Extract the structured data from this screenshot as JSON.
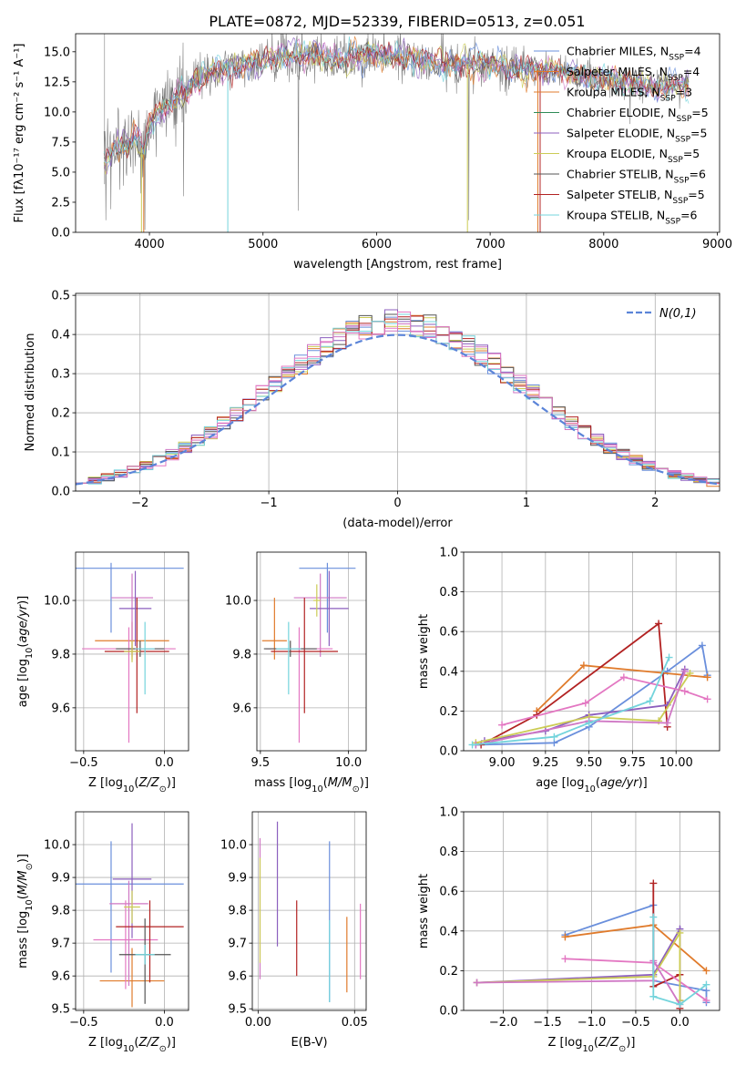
{
  "figure": {
    "title": "PLATE=0872, MJD=52339, FIBERID=0513, z=0.051"
  },
  "colors": {
    "series": [
      "#6a8fdc",
      "#e07b2c",
      "#8c5fbe",
      "#cf77c4",
      "#cccc55",
      "#555555",
      "#b22222",
      "#74d4dc",
      "#2e8b57",
      "#e377c2"
    ],
    "spectrum_data": "#808080",
    "normal_curve": "#5b84d8",
    "grid": "#b0b0b0"
  },
  "chart_data": [
    {
      "id": "spectrum",
      "type": "line",
      "xlabel": "wavelength [Angstrom, rest frame]",
      "ylabel": "Flux [f$_\\lambda$10$^{-17}$ erg cm$^{-2}$ s$^{-1}$ A$^{-1}$]",
      "ylabel_display": "Flux [fλ10⁻¹⁷ erg cm⁻² s⁻¹ A⁻¹]",
      "xlim": [
        3350,
        9020
      ],
      "ylim": [
        0,
        16.5
      ],
      "xticks": [
        4000,
        5000,
        6000,
        7000,
        8000,
        9000
      ],
      "yticks": [
        0.0,
        2.5,
        5.0,
        7.5,
        10.0,
        12.5,
        15.0
      ],
      "legend_position": "upper right",
      "grid": false,
      "continuum": {
        "x": [
          3600,
          3700,
          3800,
          3900,
          3950,
          4000,
          4100,
          4200,
          4300,
          4400,
          4500,
          4600,
          4800,
          5000,
          5200,
          5400,
          5600,
          5800,
          6000,
          6200,
          6400,
          6600,
          6800,
          7000,
          7200,
          7400,
          7600,
          7800,
          8000,
          8200,
          8400,
          8600,
          8750
        ],
        "y": [
          6.0,
          6.8,
          7.4,
          7.8,
          6.5,
          9.0,
          10.3,
          10.9,
          11.6,
          12.4,
          13.1,
          13.5,
          14.0,
          14.3,
          14.6,
          14.7,
          14.5,
          14.6,
          14.8,
          14.5,
          14.2,
          13.9,
          14.0,
          13.9,
          13.6,
          13.5,
          13.3,
          13.0,
          12.6,
          12.4,
          12.2,
          12.2,
          12.1
        ]
      },
      "series": [
        {
          "name": "Chabrier MILES, N$_{SSP}$=4",
          "label": "Chabrier MILES, N",
          "sub": "SSP",
          "suffix": "=4"
        },
        {
          "name": "Salpeter MILES, N$_{SSP}$=4",
          "label": "Salpeter MILES, N",
          "sub": "SSP",
          "suffix": "=4"
        },
        {
          "name": "Kroupa MILES, N$_{SSP}$=3",
          "label": "Kroupa MILES, N",
          "sub": "SSP",
          "suffix": "=3"
        },
        {
          "name": "Chabrier ELODIE, N$_{SSP}$=5",
          "label": "Chabrier ELODIE, N",
          "sub": "SSP",
          "suffix": "=5"
        },
        {
          "name": "Salpeter ELODIE, N$_{SSP}$=5",
          "label": "Salpeter ELODIE, N",
          "sub": "SSP",
          "suffix": "=5"
        },
        {
          "name": "Kroupa ELODIE, N$_{SSP}$=5",
          "label": "Kroupa ELODIE, N",
          "sub": "SSP",
          "suffix": "=5"
        },
        {
          "name": "Chabrier STELIB, N$_{SSP}$=6",
          "label": "Chabrier STELIB, N",
          "sub": "SSP",
          "suffix": "=6"
        },
        {
          "name": "Salpeter STELIB, N$_{SSP}$=5",
          "label": "Salpeter STELIB, N",
          "sub": "SSP",
          "suffix": "=5"
        },
        {
          "name": "Kroupa STELIB, N$_{SSP}$=6",
          "label": "Kroupa STELIB, N",
          "sub": "SSP",
          "suffix": "=6"
        }
      ]
    },
    {
      "id": "residuals",
      "type": "histogram",
      "xlabel": "(data-model)/error",
      "ylabel": "Normed distribution",
      "xlim": [
        -2.5,
        2.5
      ],
      "ylim": [
        0,
        0.505
      ],
      "xticks": [
        -2,
        -1,
        0,
        1,
        2
      ],
      "yticks": [
        0.0,
        0.1,
        0.2,
        0.3,
        0.4,
        0.5
      ],
      "grid": true,
      "bin_width": 0.1,
      "legend_position": "upper right",
      "normal_label": "N(0,1)",
      "normal": {
        "mean": 0,
        "sigma": 1
      }
    },
    {
      "id": "age_vs_Z",
      "type": "errorbar",
      "xlabel": "Z [log$_{10}$(Z/Z$_\\odot$)]",
      "ylabel": "age  [log$_{10}$(age/yr)]",
      "xlim": [
        -0.55,
        0.15
      ],
      "ylim": [
        9.44,
        10.18
      ],
      "xticks": [
        -0.5,
        0.0
      ],
      "yticks": [
        9.6,
        9.8,
        10.0
      ],
      "grid": true,
      "points": [
        {
          "x": -0.33,
          "y": 10.12,
          "xerr": [
            0.45,
            0.45
          ],
          "yerr": [
            0.24,
            0.02
          ],
          "c": 0
        },
        {
          "x": -0.2,
          "y": 9.85,
          "xerr": [
            0.23,
            0.23
          ],
          "yerr": [
            0.07,
            0.07
          ],
          "c": 1
        },
        {
          "x": -0.2,
          "y": 10.01,
          "xerr": [
            0.13,
            0.13
          ],
          "yerr": [
            0.22,
            0.09
          ],
          "c": 3
        },
        {
          "x": -0.18,
          "y": 9.97,
          "xerr": [
            0.1,
            0.1
          ],
          "yerr": [
            0.14,
            0.14
          ],
          "c": 2
        },
        {
          "x": -0.22,
          "y": 9.82,
          "xerr": [
            0.29,
            0.29
          ],
          "yerr": [
            0.35,
            0.08
          ],
          "c": 9
        },
        {
          "x": -0.17,
          "y": 9.81,
          "xerr": [
            0.2,
            0.2
          ],
          "yerr": [
            0.23,
            0.2
          ],
          "c": 6
        },
        {
          "x": -0.15,
          "y": 9.82,
          "xerr": [
            0.15,
            0.15
          ],
          "yerr": [
            0.03,
            0.03
          ],
          "c": 5
        },
        {
          "x": -0.12,
          "y": 9.82,
          "xerr": [
            0.06,
            0.06
          ],
          "yerr": [
            0.17,
            0.1
          ],
          "c": 7
        },
        {
          "x": -0.2,
          "y": 9.81,
          "xerr": [
            0.05,
            0.05
          ],
          "yerr": [
            0.04,
            0.04
          ],
          "c": 4
        }
      ]
    },
    {
      "id": "age_vs_mass",
      "type": "errorbar",
      "xlabel": "mass [log$_{10}$(M/M$_\\odot$)]",
      "ylabel": "",
      "xlim": [
        9.48,
        10.1
      ],
      "ylim": [
        9.44,
        10.18
      ],
      "xticks": [
        9.5,
        10.0
      ],
      "yticks": [
        9.6,
        9.8,
        10.0
      ],
      "grid": true,
      "points": [
        {
          "x": 9.88,
          "y": 10.12,
          "xerr": [
            0.16,
            0.16
          ],
          "yerr": [
            0.24,
            0.02
          ],
          "c": 0
        },
        {
          "x": 9.58,
          "y": 9.85,
          "xerr": [
            0.07,
            0.07
          ],
          "yerr": [
            0.07,
            0.16
          ],
          "c": 1
        },
        {
          "x": 9.84,
          "y": 10.01,
          "xerr": [
            0.15,
            0.15
          ],
          "yerr": [
            0.22,
            0.09
          ],
          "c": 3
        },
        {
          "x": 9.89,
          "y": 9.97,
          "xerr": [
            0.11,
            0.11
          ],
          "yerr": [
            0.14,
            0.14
          ],
          "c": 2
        },
        {
          "x": 9.72,
          "y": 9.82,
          "xerr": [
            0.19,
            0.19
          ],
          "yerr": [
            0.35,
            0.08
          ],
          "c": 9
        },
        {
          "x": 9.75,
          "y": 9.81,
          "xerr": [
            0.19,
            0.19
          ],
          "yerr": [
            0.23,
            0.2
          ],
          "c": 6
        },
        {
          "x": 9.67,
          "y": 9.82,
          "xerr": [
            0.15,
            0.15
          ],
          "yerr": [
            0.03,
            0.03
          ],
          "c": 5
        },
        {
          "x": 9.66,
          "y": 9.82,
          "xerr": [
            0.07,
            0.07
          ],
          "yerr": [
            0.17,
            0.1
          ],
          "c": 7
        },
        {
          "x": 9.82,
          "y": 10.0,
          "xerr": [
            0.02,
            0.02
          ],
          "yerr": [
            0.06,
            0.06
          ],
          "c": 4
        }
      ]
    },
    {
      "id": "weight_vs_age",
      "type": "line",
      "xlabel": "age  [log$_{10}$(age/yr)]",
      "ylabel": "mass weight",
      "xlim": [
        8.78,
        10.25
      ],
      "ylim": [
        0,
        1.0
      ],
      "xticks": [
        9.0,
        9.25,
        9.5,
        9.75,
        10.0
      ],
      "yticks": [
        0.0,
        0.2,
        0.4,
        0.6,
        0.8,
        1.0
      ],
      "grid": true,
      "series": [
        {
          "c": 0,
          "x": [
            8.85,
            9.3,
            9.5,
            9.95,
            10.15,
            10.18
          ],
          "y": [
            0.03,
            0.04,
            0.12,
            0.4,
            0.53,
            0.38
          ]
        },
        {
          "c": 1,
          "x": [
            9.2,
            9.47,
            10.18
          ],
          "y": [
            0.2,
            0.43,
            0.37
          ]
        },
        {
          "c": 6,
          "x": [
            8.88,
            9.2,
            9.9,
            9.95
          ],
          "y": [
            0.03,
            0.18,
            0.64,
            0.12
          ]
        },
        {
          "c": 2,
          "x": [
            8.9,
            9.25,
            9.5,
            9.95,
            10.05
          ],
          "y": [
            0.05,
            0.1,
            0.18,
            0.23,
            0.41
          ]
        },
        {
          "c": 9,
          "x": [
            9.0,
            9.48,
            9.7,
            10.05,
            10.18
          ],
          "y": [
            0.13,
            0.24,
            0.37,
            0.3,
            0.26
          ]
        },
        {
          "c": 4,
          "x": [
            8.85,
            9.5,
            9.9,
            10.08
          ],
          "y": [
            0.04,
            0.17,
            0.15,
            0.39
          ]
        },
        {
          "c": 3,
          "x": [
            8.85,
            9.5,
            9.95,
            10.05
          ],
          "y": [
            0.03,
            0.15,
            0.14,
            0.4
          ]
        },
        {
          "c": 7,
          "x": [
            8.83,
            9.3,
            9.5,
            9.85,
            9.96
          ],
          "y": [
            0.03,
            0.07,
            0.14,
            0.25,
            0.47
          ]
        }
      ]
    },
    {
      "id": "mass_vs_Z",
      "type": "errorbar",
      "xlabel": "Z [log$_{10}$(Z/Z$_\\odot$)]",
      "ylabel": "mass [log$_{10}$(M/M$_\\odot$)]",
      "xlim": [
        -0.55,
        0.15
      ],
      "ylim": [
        9.495,
        10.1
      ],
      "xticks": [
        -0.5,
        0.0
      ],
      "yticks": [
        9.5,
        9.6,
        9.7,
        9.8,
        9.9,
        10.0
      ],
      "grid": true,
      "points": [
        {
          "x": -0.33,
          "y": 9.88,
          "xerr": [
            0.45,
            0.45
          ],
          "yerr": [
            0.27,
            0.13
          ],
          "c": 0
        },
        {
          "x": -0.2,
          "y": 9.585,
          "xerr": [
            0.2,
            0.2
          ],
          "yerr": [
            0.08,
            0.1
          ],
          "c": 1
        },
        {
          "x": -0.2,
          "y": 9.895,
          "xerr": [
            0.12,
            0.12
          ],
          "yerr": [
            0.18,
            0.17
          ],
          "c": 2
        },
        {
          "x": -0.22,
          "y": 9.82,
          "xerr": [
            0.12,
            0.12
          ],
          "yerr": [
            0.25,
            0.07
          ],
          "c": 3
        },
        {
          "x": -0.24,
          "y": 9.71,
          "xerr": [
            0.2,
            0.2
          ],
          "yerr": [
            0.15,
            0.12
          ],
          "c": 9
        },
        {
          "x": -0.2,
          "y": 9.81,
          "xerr": [
            0.05,
            0.05
          ],
          "yerr": [
            0.05,
            0.05
          ],
          "c": 4
        },
        {
          "x": -0.09,
          "y": 9.75,
          "xerr": [
            0.21,
            0.21
          ],
          "yerr": [
            0.17,
            0.08
          ],
          "c": 6
        },
        {
          "x": -0.12,
          "y": 9.665,
          "xerr": [
            0.16,
            0.16
          ],
          "yerr": [
            0.15,
            0.11
          ],
          "c": 5
        },
        {
          "x": -0.12,
          "y": 9.665,
          "xerr": [
            0.06,
            0.06
          ],
          "yerr": [
            0.03,
            0.03
          ],
          "c": 7
        }
      ]
    },
    {
      "id": "mass_vs_ebv",
      "type": "errorbar",
      "xlabel": "E(B-V)",
      "ylabel": "",
      "xlim": [
        -0.003,
        0.056
      ],
      "ylim": [
        9.495,
        10.1
      ],
      "xticks": [
        0.0,
        0.05
      ],
      "yticks": [
        9.5,
        9.6,
        9.7,
        9.8,
        9.9,
        10.0
      ],
      "grid": true,
      "points": [
        {
          "x": 0.001,
          "y": 9.82,
          "xerr": [
            0,
            0
          ],
          "yerr": [
            0.23,
            0.2
          ],
          "c": 3
        },
        {
          "x": 0.001,
          "y": 9.76,
          "xerr": [
            0,
            0
          ],
          "yerr": [
            0.12,
            0.2
          ],
          "c": 4
        },
        {
          "x": 0.01,
          "y": 9.88,
          "xerr": [
            0,
            0
          ],
          "yerr": [
            0.19,
            0.19
          ],
          "c": 2
        },
        {
          "x": 0.02,
          "y": 9.75,
          "xerr": [
            0,
            0
          ],
          "yerr": [
            0.15,
            0.08
          ],
          "c": 6
        },
        {
          "x": 0.037,
          "y": 9.8,
          "xerr": [
            0,
            0
          ],
          "yerr": [
            0.28,
            0.21
          ],
          "c": 0
        },
        {
          "x": 0.037,
          "y": 9.67,
          "xerr": [
            0,
            0
          ],
          "yerr": [
            0.15,
            0.1
          ],
          "c": 7
        },
        {
          "x": 0.046,
          "y": 9.68,
          "xerr": [
            0,
            0
          ],
          "yerr": [
            0.13,
            0.1
          ],
          "c": 1
        },
        {
          "x": 0.053,
          "y": 9.71,
          "xerr": [
            0,
            0
          ],
          "yerr": [
            0.12,
            0.11
          ],
          "c": 9
        }
      ]
    },
    {
      "id": "weight_vs_Z",
      "type": "line",
      "xlabel": "Z [log$_{10}$(Z/Z$_\\odot$)]",
      "ylabel": "mass weight",
      "xlim": [
        -2.45,
        0.45
      ],
      "ylim": [
        0,
        1.0
      ],
      "xticks": [
        -2.0,
        -1.5,
        -1.0,
        -0.5,
        0.0
      ],
      "yticks": [
        0.0,
        0.2,
        0.4,
        0.6,
        0.8,
        1.0
      ],
      "grid": true,
      "series": [
        {
          "c": 0,
          "x": [
            -1.3,
            -0.3,
            -0.3,
            0.3,
            0.3
          ],
          "y": [
            0.38,
            0.53,
            0.15,
            0.1,
            0.04
          ]
        },
        {
          "c": 1,
          "x": [
            -1.3,
            -0.3,
            0.3
          ],
          "y": [
            0.37,
            0.43,
            0.2
          ]
        },
        {
          "c": 6,
          "x": [
            -0.3,
            -0.3,
            0.0,
            0.0
          ],
          "y": [
            0.64,
            0.12,
            0.18,
            0.01
          ]
        },
        {
          "c": 2,
          "x": [
            -2.3,
            -0.3,
            0.0,
            0.0
          ],
          "y": [
            0.14,
            0.18,
            0.41,
            0.05
          ]
        },
        {
          "c": 9,
          "x": [
            -1.3,
            -0.3,
            0.3
          ],
          "y": [
            0.26,
            0.24,
            0.05
          ]
        },
        {
          "c": 4,
          "x": [
            -2.3,
            -0.3,
            0.0,
            0.0
          ],
          "y": [
            0.14,
            0.17,
            0.39,
            0.05
          ]
        },
        {
          "c": 3,
          "x": [
            -2.3,
            -0.3,
            -0.3,
            0.0
          ],
          "y": [
            0.14,
            0.15,
            0.25,
            0.03
          ]
        },
        {
          "c": 7,
          "x": [
            -0.3,
            -0.3,
            0.0,
            0.3
          ],
          "y": [
            0.47,
            0.07,
            0.03,
            0.13
          ]
        }
      ]
    }
  ]
}
